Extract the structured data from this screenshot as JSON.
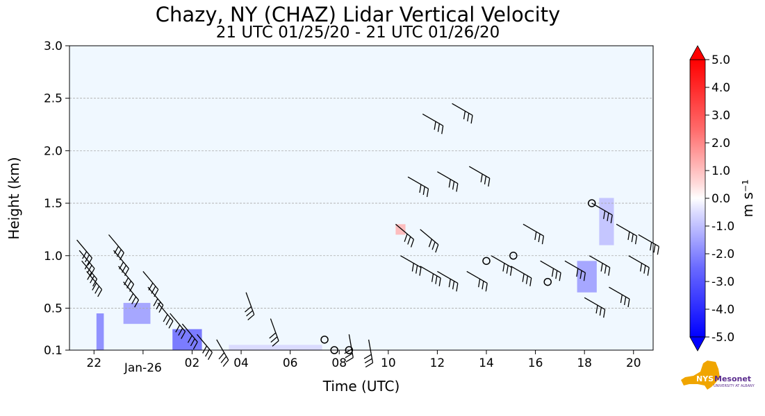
{
  "chart_data": {
    "type": "heatmap",
    "title": "Chazy, NY (CHAZ) Lidar Vertical Velocity",
    "subtitle": "21 UTC 01/25/20 - 21 UTC 01/26/20",
    "xlabel": "Time (UTC)",
    "ylabel": "Height (km)",
    "xlim_hours_since_21utc": [
      0,
      23.8
    ],
    "ylim": [
      0.1,
      3.0
    ],
    "grid": "horizontal dashed",
    "x_ticks": [
      {
        "hours": 1,
        "label": "22"
      },
      {
        "hours": 3,
        "label": "Jan-26"
      },
      {
        "hours": 5,
        "label": "02"
      },
      {
        "hours": 7,
        "label": "04"
      },
      {
        "hours": 9,
        "label": "06"
      },
      {
        "hours": 11,
        "label": "08"
      },
      {
        "hours": 13,
        "label": "10"
      },
      {
        "hours": 15,
        "label": "12"
      },
      {
        "hours": 17,
        "label": "14"
      },
      {
        "hours": 19,
        "label": "16"
      },
      {
        "hours": 21,
        "label": "18"
      },
      {
        "hours": 23,
        "label": "20"
      }
    ],
    "y_ticks": [
      {
        "value": 0.1,
        "label": "0.1"
      },
      {
        "value": 0.5,
        "label": "0.5"
      },
      {
        "value": 1.0,
        "label": "1.0"
      },
      {
        "value": 1.5,
        "label": "1.5"
      },
      {
        "value": 2.0,
        "label": "2.0"
      },
      {
        "value": 2.5,
        "label": "2.5"
      },
      {
        "value": 3.0,
        "label": "3.0"
      }
    ],
    "colorbar": {
      "label": "m s⁻¹",
      "min": -5.0,
      "max": 5.0,
      "tick_labels": [
        "5.0",
        "4.0",
        "3.0",
        "2.0",
        "1.0",
        "0.0",
        "-1.0",
        "-2.0",
        "-3.0",
        "-4.0",
        "-5.0"
      ]
    },
    "regions": [
      {
        "name": "low-level downdraft near 22 UTC",
        "t0": 1.1,
        "t1": 1.4,
        "h0": 0.1,
        "h1": 0.45,
        "value": -2.5
      },
      {
        "name": "downdraft near Jan-26",
        "t0": 2.2,
        "t1": 3.3,
        "h0": 0.35,
        "h1": 0.55,
        "value": -2.0
      },
      {
        "name": "downdraft near 02 UTC",
        "t0": 4.2,
        "t1": 5.4,
        "h0": 0.1,
        "h1": 0.3,
        "value": -3.0
      },
      {
        "name": "weak downdraft near 06-08 UTC",
        "t0": 6.5,
        "t1": 10.3,
        "h0": 0.1,
        "h1": 0.15,
        "value": -0.8
      },
      {
        "name": "weak updraft near 10 UTC",
        "t0": 13.3,
        "t1": 13.7,
        "h0": 1.2,
        "h1": 1.3,
        "value": 1.5
      },
      {
        "name": "downdraft near 18 UTC",
        "t0": 20.7,
        "t1": 21.5,
        "h0": 0.65,
        "h1": 0.95,
        "value": -2.0
      },
      {
        "name": "downdraft near 19 UTC",
        "t0": 21.6,
        "t1": 22.2,
        "h0": 1.1,
        "h1": 1.55,
        "value": -1.3
      }
    ],
    "wind_barbs": [
      {
        "t": 0.3,
        "h": 1.15,
        "dir": 320
      },
      {
        "t": 0.4,
        "h": 1.05,
        "dir": 320
      },
      {
        "t": 0.5,
        "h": 0.95,
        "dir": 320
      },
      {
        "t": 0.7,
        "h": 0.85,
        "dir": 320
      },
      {
        "t": 1.6,
        "h": 1.2,
        "dir": 320
      },
      {
        "t": 1.8,
        "h": 1.05,
        "dir": 320
      },
      {
        "t": 2.0,
        "h": 0.9,
        "dir": 320
      },
      {
        "t": 2.2,
        "h": 0.75,
        "dir": 320
      },
      {
        "t": 3.0,
        "h": 0.85,
        "dir": 320
      },
      {
        "t": 3.2,
        "h": 0.7,
        "dir": 320
      },
      {
        "t": 3.6,
        "h": 0.55,
        "dir": 320
      },
      {
        "t": 4.1,
        "h": 0.45,
        "dir": 320
      },
      {
        "t": 4.6,
        "h": 0.35,
        "dir": 320
      },
      {
        "t": 5.2,
        "h": 0.25,
        "dir": 320
      },
      {
        "t": 6.0,
        "h": 0.2,
        "dir": 330
      },
      {
        "t": 7.2,
        "h": 0.65,
        "dir": 340
      },
      {
        "t": 8.2,
        "h": 0.4,
        "dir": 340
      },
      {
        "t": 11.4,
        "h": 0.25,
        "dir": 350
      },
      {
        "t": 12.2,
        "h": 0.2,
        "dir": 350
      },
      {
        "t": 13.3,
        "h": 1.3,
        "dir": 310
      },
      {
        "t": 14.3,
        "h": 1.25,
        "dir": 310
      },
      {
        "t": 13.5,
        "h": 1.0,
        "dir": 300
      },
      {
        "t": 14.3,
        "h": 0.9,
        "dir": 300
      },
      {
        "t": 15.0,
        "h": 0.85,
        "dir": 300
      },
      {
        "t": 13.8,
        "h": 1.75,
        "dir": 300
      },
      {
        "t": 15.0,
        "h": 1.8,
        "dir": 300
      },
      {
        "t": 16.3,
        "h": 1.85,
        "dir": 300
      },
      {
        "t": 14.4,
        "h": 2.35,
        "dir": 300
      },
      {
        "t": 15.6,
        "h": 2.45,
        "dir": 300
      },
      {
        "t": 16.2,
        "h": 0.85,
        "dir": 300
      },
      {
        "t": 17.2,
        "h": 1.0,
        "dir": 300
      },
      {
        "t": 18.5,
        "h": 1.3,
        "dir": 300
      },
      {
        "t": 18.0,
        "h": 0.9,
        "dir": 300
      },
      {
        "t": 19.2,
        "h": 0.95,
        "dir": 300
      },
      {
        "t": 20.2,
        "h": 0.95,
        "dir": 300
      },
      {
        "t": 21.2,
        "h": 1.0,
        "dir": 300
      },
      {
        "t": 21.0,
        "h": 0.6,
        "dir": 300
      },
      {
        "t": 22.0,
        "h": 0.7,
        "dir": 300
      },
      {
        "t": 22.8,
        "h": 1.0,
        "dir": 300
      },
      {
        "t": 21.3,
        "h": 1.5,
        "dir": 300
      },
      {
        "t": 22.3,
        "h": 1.3,
        "dir": 300
      },
      {
        "t": 23.2,
        "h": 1.2,
        "dir": 300
      }
    ],
    "contours": [
      {
        "t": 10.4,
        "h": 0.2
      },
      {
        "t": 10.8,
        "h": 0.1
      },
      {
        "t": 11.4,
        "h": 0.1
      },
      {
        "t": 17.0,
        "h": 0.95
      },
      {
        "t": 18.1,
        "h": 1.0
      },
      {
        "t": 21.3,
        "h": 1.5
      },
      {
        "t": 19.5,
        "h": 0.75
      }
    ]
  },
  "logo": {
    "text": "NYS Mesonet",
    "subtext": "UNIVERSITY AT ALBANY",
    "colors": {
      "state": "#f0a500",
      "text": "#5b2d8e"
    }
  }
}
